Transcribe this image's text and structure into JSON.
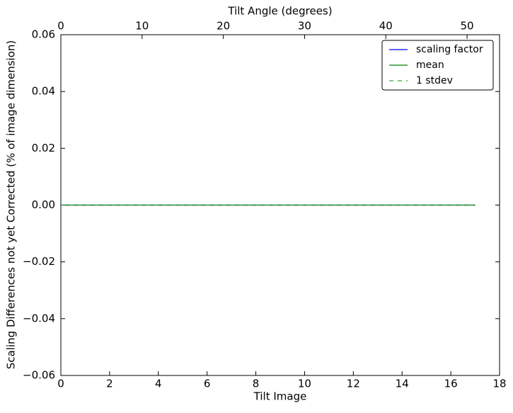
{
  "chart_data": {
    "type": "line",
    "xlabel": "Tilt Image",
    "ylabel": "Scaling Differences not yet Corrected (% of image dimension)",
    "x2label": "Tilt Angle (degrees)",
    "x": [
      0,
      1,
      2,
      3,
      4,
      5,
      6,
      7,
      8,
      9,
      10,
      11,
      12,
      13,
      14,
      15,
      16,
      17
    ],
    "series": [
      {
        "name": "scaling factor",
        "color": "#0000ff",
        "dash": false,
        "values": [
          0,
          0,
          0,
          0,
          0,
          0,
          0,
          0,
          0,
          0,
          0,
          0,
          0,
          0,
          0,
          0,
          0,
          0
        ]
      },
      {
        "name": "mean",
        "color": "#008000",
        "dash": false,
        "values": [
          0,
          0,
          0,
          0,
          0,
          0,
          0,
          0,
          0,
          0,
          0,
          0,
          0,
          0,
          0,
          0,
          0,
          0
        ]
      },
      {
        "name": "1 stdev",
        "color": "#33aa33",
        "dash": true,
        "values": [
          0,
          0,
          0,
          0,
          0,
          0,
          0,
          0,
          0,
          0,
          0,
          0,
          0,
          0,
          0,
          0,
          0,
          0
        ]
      }
    ],
    "xlim": [
      0,
      18
    ],
    "xticks": [
      0,
      2,
      4,
      6,
      8,
      10,
      12,
      14,
      16,
      18
    ],
    "x2lim": [
      0,
      54
    ],
    "x2ticks": [
      0,
      10,
      20,
      30,
      40,
      50
    ],
    "ylim": [
      -0.06,
      0.06
    ],
    "yticks": [
      {
        "value": -0.06,
        "label": "−0.06"
      },
      {
        "value": -0.04,
        "label": "−0.04"
      },
      {
        "value": -0.02,
        "label": "−0.02"
      },
      {
        "value": 0,
        "label": "0.00"
      },
      0.02,
      0.04,
      0.06
    ],
    "legend": "upper right"
  }
}
